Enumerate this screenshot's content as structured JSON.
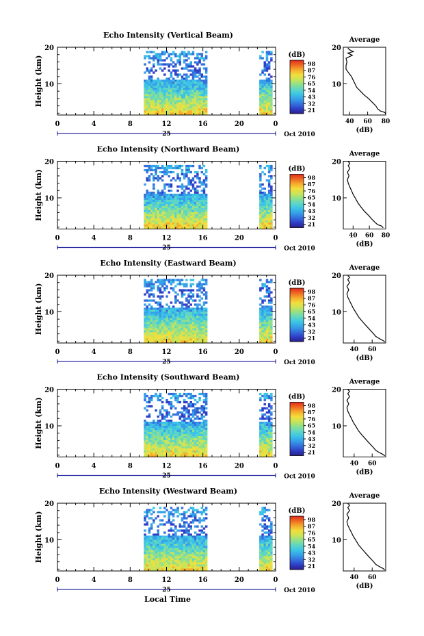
{
  "footer": {
    "xlabel": "Local Time"
  },
  "colors": {
    "colormap": [
      "#2a1f8c",
      "#2f3fc6",
      "#3470dc",
      "#36a0e8",
      "#3cc4e6",
      "#5fd6c4",
      "#8ee08c",
      "#c9e45a",
      "#f2de3c",
      "#f6ac2c",
      "#ee6a22",
      "#e02a1c"
    ]
  },
  "chart_data": [
    {
      "type": "heatmap",
      "title": "Echo Intensity (Vertical Beam)",
      "ylabel": "Height (km)",
      "xticks": [
        "0",
        "4",
        "8",
        "12",
        "16",
        "20",
        "0"
      ],
      "date_day": "25",
      "date_label": "Oct 2010",
      "xlim": [
        0,
        24
      ],
      "ylim": [
        1.5,
        20
      ],
      "yticks": [
        "10",
        "20"
      ],
      "colorbar": {
        "unit": "(dB)",
        "ticks": [
          "98",
          "87",
          "76",
          "65",
          "54",
          "43",
          "32",
          "21"
        ]
      },
      "data_blocks": [
        {
          "x": [
            9.5,
            16.3
          ],
          "y": [
            2,
            19
          ]
        },
        {
          "x": [
            22.2,
            23.6
          ],
          "y": [
            2,
            19
          ]
        }
      ],
      "profile": {
        "title": "Average",
        "xlabel": "(dB)",
        "xticks": [
          "40",
          "60",
          "80"
        ],
        "xlim": [
          33,
          80
        ],
        "yticks": [
          "10",
          "20"
        ],
        "points": [
          [
            80,
            1.8
          ],
          [
            79,
            2.2
          ],
          [
            74,
            2.6
          ],
          [
            71,
            3.2
          ],
          [
            69,
            4
          ],
          [
            65,
            5
          ],
          [
            61,
            6
          ],
          [
            56,
            7
          ],
          [
            52,
            8
          ],
          [
            48,
            9
          ],
          [
            46,
            10
          ],
          [
            44,
            11
          ],
          [
            42,
            12
          ],
          [
            39,
            13
          ],
          [
            36,
            14
          ],
          [
            36,
            15
          ],
          [
            37,
            16
          ],
          [
            36,
            17
          ],
          [
            43,
            17.8
          ],
          [
            38,
            18.4
          ],
          [
            44,
            18.8
          ],
          [
            40,
            19.3
          ],
          [
            38,
            19.8
          ]
        ]
      }
    },
    {
      "type": "heatmap",
      "title": "Echo Intensity (Northward Beam)",
      "ylabel": "Height (km)",
      "xticks": [
        "0",
        "4",
        "8",
        "12",
        "16",
        "20",
        "0"
      ],
      "date_day": "25",
      "date_label": "Oct 2010",
      "xlim": [
        0,
        24
      ],
      "ylim": [
        1.5,
        20
      ],
      "yticks": [
        "10",
        "20"
      ],
      "colorbar": {
        "unit": "(dB)",
        "ticks": [
          "98",
          "87",
          "76",
          "65",
          "54",
          "43",
          "32",
          "21"
        ]
      },
      "data_blocks": [
        {
          "x": [
            9.5,
            16.3
          ],
          "y": [
            2,
            19
          ]
        },
        {
          "x": [
            22.2,
            23.6
          ],
          "y": [
            2,
            19
          ]
        }
      ],
      "profile": {
        "title": "Average",
        "xlabel": "(dB)",
        "xticks": [
          "40",
          "60",
          "80"
        ],
        "xlim": [
          28,
          80
        ],
        "yticks": [
          "10",
          "20"
        ],
        "points": [
          [
            77,
            1.8
          ],
          [
            75,
            2.3
          ],
          [
            70,
            2.7
          ],
          [
            67,
            3.3
          ],
          [
            63,
            4.2
          ],
          [
            59,
            5.2
          ],
          [
            54,
            6.3
          ],
          [
            50,
            7.4
          ],
          [
            46,
            8.6
          ],
          [
            43,
            9.8
          ],
          [
            40,
            11
          ],
          [
            38,
            12
          ],
          [
            36,
            13
          ],
          [
            34,
            14
          ],
          [
            33,
            15
          ],
          [
            35,
            16
          ],
          [
            33,
            17
          ],
          [
            36,
            18
          ],
          [
            34,
            18.8
          ],
          [
            36,
            19.4
          ],
          [
            34,
            19.9
          ]
        ]
      }
    },
    {
      "type": "heatmap",
      "title": "Echo Intensity (Eastward Beam)",
      "ylabel": "Height (km)",
      "xticks": [
        "0",
        "4",
        "8",
        "12",
        "16",
        "20",
        "0"
      ],
      "date_day": "25",
      "date_label": "Oct 2010",
      "xlim": [
        0,
        24
      ],
      "ylim": [
        1.5,
        20
      ],
      "yticks": [
        "10",
        "20"
      ],
      "colorbar": {
        "unit": "(dB)",
        "ticks": [
          "98",
          "87",
          "76",
          "65",
          "54",
          "43",
          "32",
          "21"
        ]
      },
      "data_blocks": [
        {
          "x": [
            9.5,
            16.3
          ],
          "y": [
            2,
            19
          ]
        },
        {
          "x": [
            22.2,
            23.6
          ],
          "y": [
            2,
            19
          ]
        }
      ],
      "profile": {
        "title": "Average",
        "xlabel": "(dB)",
        "xticks": [
          "40",
          "60"
        ],
        "xlim": [
          28,
          75
        ],
        "yticks": [
          "10",
          "20"
        ],
        "points": [
          [
            74,
            1.8
          ],
          [
            72,
            2.2
          ],
          [
            68,
            2.7
          ],
          [
            64,
            3.3
          ],
          [
            61,
            4.2
          ],
          [
            57,
            5.2
          ],
          [
            53,
            6.3
          ],
          [
            49,
            7.4
          ],
          [
            45,
            8.6
          ],
          [
            42,
            9.8
          ],
          [
            39,
            11
          ],
          [
            37,
            12
          ],
          [
            35,
            13
          ],
          [
            33,
            14
          ],
          [
            32,
            15
          ],
          [
            34,
            16
          ],
          [
            32,
            17
          ],
          [
            35,
            18
          ],
          [
            33,
            18.8
          ],
          [
            35,
            19.4
          ],
          [
            33,
            19.9
          ]
        ]
      }
    },
    {
      "type": "heatmap",
      "title": "Echo Intensity (Southward Beam)",
      "ylabel": "Height (km)",
      "xticks": [
        "0",
        "4",
        "8",
        "12",
        "16",
        "20",
        "0"
      ],
      "date_day": "25",
      "date_label": "Oct 2010",
      "xlim": [
        0,
        24
      ],
      "ylim": [
        1.5,
        20
      ],
      "yticks": [
        "10",
        "20"
      ],
      "colorbar": {
        "unit": "(dB)",
        "ticks": [
          "98",
          "87",
          "76",
          "65",
          "54",
          "43",
          "32",
          "21"
        ]
      },
      "data_blocks": [
        {
          "x": [
            9.5,
            16.3
          ],
          "y": [
            2,
            19
          ]
        },
        {
          "x": [
            22.2,
            23.6
          ],
          "y": [
            2,
            19
          ]
        }
      ],
      "profile": {
        "title": "Average",
        "xlabel": "(dB)",
        "xticks": [
          "40",
          "60"
        ],
        "xlim": [
          28,
          75
        ],
        "yticks": [
          "10",
          "20"
        ],
        "points": [
          [
            74,
            1.8
          ],
          [
            72,
            2.2
          ],
          [
            68,
            2.7
          ],
          [
            64,
            3.3
          ],
          [
            61,
            4.2
          ],
          [
            57,
            5.2
          ],
          [
            53,
            6.3
          ],
          [
            49,
            7.4
          ],
          [
            45,
            8.6
          ],
          [
            42,
            9.8
          ],
          [
            39,
            11
          ],
          [
            37,
            12
          ],
          [
            35,
            13
          ],
          [
            33,
            14
          ],
          [
            32,
            15
          ],
          [
            34,
            16
          ],
          [
            32,
            17
          ],
          [
            35,
            18
          ],
          [
            33,
            18.8
          ],
          [
            35,
            19.4
          ],
          [
            33,
            19.9
          ]
        ]
      }
    },
    {
      "type": "heatmap",
      "title": "Echo Intensity (Westward Beam)",
      "ylabel": "Height (km)",
      "xticks": [
        "0",
        "4",
        "8",
        "12",
        "16",
        "20",
        "0"
      ],
      "date_day": "25",
      "date_label": "Oct 2010",
      "xlim": [
        0,
        24
      ],
      "ylim": [
        1.5,
        20
      ],
      "yticks": [
        "10",
        "20"
      ],
      "colorbar": {
        "unit": "(dB)",
        "ticks": [
          "98",
          "87",
          "76",
          "65",
          "54",
          "43",
          "32",
          "21"
        ]
      },
      "data_blocks": [
        {
          "x": [
            9.5,
            16.3
          ],
          "y": [
            2,
            19
          ]
        },
        {
          "x": [
            22.2,
            23.6
          ],
          "y": [
            2,
            19
          ]
        }
      ],
      "profile": {
        "title": "Average",
        "xlabel": "(dB)",
        "xticks": [
          "40",
          "60"
        ],
        "xlim": [
          28,
          75
        ],
        "yticks": [
          "10",
          "20"
        ],
        "points": [
          [
            74,
            1.8
          ],
          [
            72,
            2.2
          ],
          [
            68,
            2.7
          ],
          [
            64,
            3.3
          ],
          [
            61,
            4.2
          ],
          [
            57,
            5.2
          ],
          [
            53,
            6.3
          ],
          [
            49,
            7.4
          ],
          [
            45,
            8.6
          ],
          [
            42,
            9.8
          ],
          [
            39,
            11
          ],
          [
            37,
            12
          ],
          [
            35,
            13
          ],
          [
            33,
            14
          ],
          [
            32,
            15
          ],
          [
            34,
            16
          ],
          [
            32,
            17
          ],
          [
            35,
            18
          ],
          [
            33,
            18.8
          ],
          [
            35,
            19.4
          ],
          [
            33,
            19.9
          ]
        ]
      }
    }
  ]
}
